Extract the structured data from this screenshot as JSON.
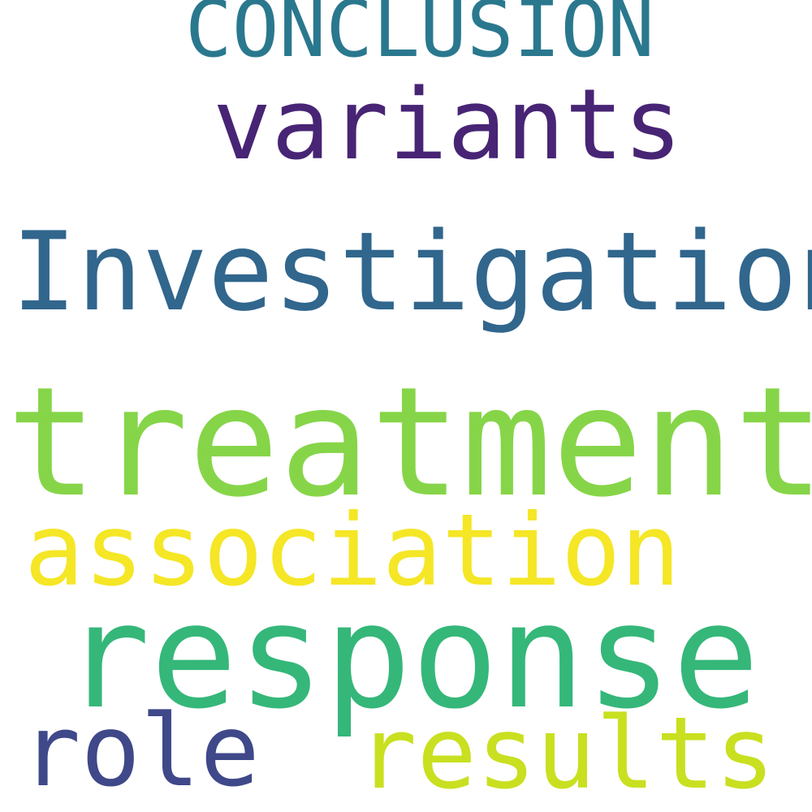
{
  "words": [
    {
      "text": "CONCLUSION",
      "color": "#2a788e"
    },
    {
      "text": "variants",
      "color": "#482475"
    },
    {
      "text": "Investigation",
      "color": "#31668d"
    },
    {
      "text": "treatment",
      "color": "#86d549"
    },
    {
      "text": "association",
      "color": "#f5e626"
    },
    {
      "text": "response",
      "color": "#35b779"
    },
    {
      "text": "role",
      "color": "#3f4889"
    },
    {
      "text": "results",
      "color": "#c8e020"
    }
  ]
}
